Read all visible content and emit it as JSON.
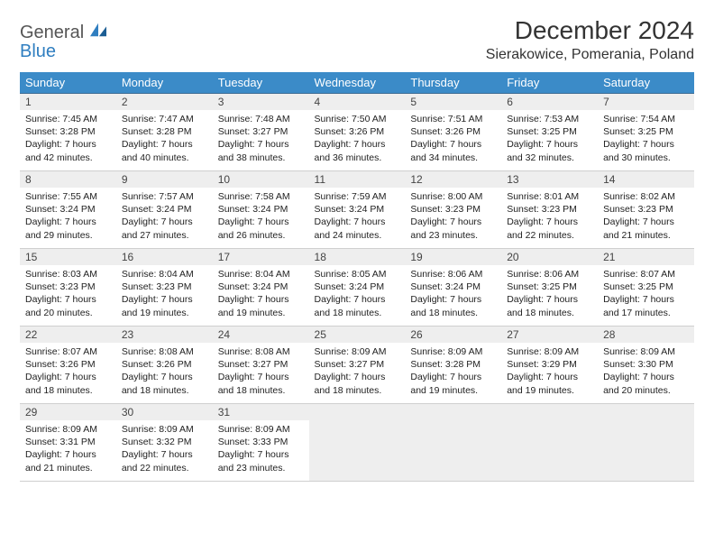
{
  "logo": {
    "word1": "General",
    "word2": "Blue"
  },
  "title": "December 2024",
  "location": "Sierakowice, Pomerania, Poland",
  "colors": {
    "header_bg": "#3b8bc8",
    "header_text": "#ffffff",
    "rule": "#3b6a93",
    "daynum_bg": "#eeeeee",
    "logo_blue": "#2f7ec0"
  },
  "weekdays": [
    "Sunday",
    "Monday",
    "Tuesday",
    "Wednesday",
    "Thursday",
    "Friday",
    "Saturday"
  ],
  "days": [
    {
      "n": 1,
      "sunrise": "7:45 AM",
      "sunset": "3:28 PM",
      "daylight": "7 hours and 42 minutes."
    },
    {
      "n": 2,
      "sunrise": "7:47 AM",
      "sunset": "3:28 PM",
      "daylight": "7 hours and 40 minutes."
    },
    {
      "n": 3,
      "sunrise": "7:48 AM",
      "sunset": "3:27 PM",
      "daylight": "7 hours and 38 minutes."
    },
    {
      "n": 4,
      "sunrise": "7:50 AM",
      "sunset": "3:26 PM",
      "daylight": "7 hours and 36 minutes."
    },
    {
      "n": 5,
      "sunrise": "7:51 AM",
      "sunset": "3:26 PM",
      "daylight": "7 hours and 34 minutes."
    },
    {
      "n": 6,
      "sunrise": "7:53 AM",
      "sunset": "3:25 PM",
      "daylight": "7 hours and 32 minutes."
    },
    {
      "n": 7,
      "sunrise": "7:54 AM",
      "sunset": "3:25 PM",
      "daylight": "7 hours and 30 minutes."
    },
    {
      "n": 8,
      "sunrise": "7:55 AM",
      "sunset": "3:24 PM",
      "daylight": "7 hours and 29 minutes."
    },
    {
      "n": 9,
      "sunrise": "7:57 AM",
      "sunset": "3:24 PM",
      "daylight": "7 hours and 27 minutes."
    },
    {
      "n": 10,
      "sunrise": "7:58 AM",
      "sunset": "3:24 PM",
      "daylight": "7 hours and 26 minutes."
    },
    {
      "n": 11,
      "sunrise": "7:59 AM",
      "sunset": "3:24 PM",
      "daylight": "7 hours and 24 minutes."
    },
    {
      "n": 12,
      "sunrise": "8:00 AM",
      "sunset": "3:23 PM",
      "daylight": "7 hours and 23 minutes."
    },
    {
      "n": 13,
      "sunrise": "8:01 AM",
      "sunset": "3:23 PM",
      "daylight": "7 hours and 22 minutes."
    },
    {
      "n": 14,
      "sunrise": "8:02 AM",
      "sunset": "3:23 PM",
      "daylight": "7 hours and 21 minutes."
    },
    {
      "n": 15,
      "sunrise": "8:03 AM",
      "sunset": "3:23 PM",
      "daylight": "7 hours and 20 minutes."
    },
    {
      "n": 16,
      "sunrise": "8:04 AM",
      "sunset": "3:23 PM",
      "daylight": "7 hours and 19 minutes."
    },
    {
      "n": 17,
      "sunrise": "8:04 AM",
      "sunset": "3:24 PM",
      "daylight": "7 hours and 19 minutes."
    },
    {
      "n": 18,
      "sunrise": "8:05 AM",
      "sunset": "3:24 PM",
      "daylight": "7 hours and 18 minutes."
    },
    {
      "n": 19,
      "sunrise": "8:06 AM",
      "sunset": "3:24 PM",
      "daylight": "7 hours and 18 minutes."
    },
    {
      "n": 20,
      "sunrise": "8:06 AM",
      "sunset": "3:25 PM",
      "daylight": "7 hours and 18 minutes."
    },
    {
      "n": 21,
      "sunrise": "8:07 AM",
      "sunset": "3:25 PM",
      "daylight": "7 hours and 17 minutes."
    },
    {
      "n": 22,
      "sunrise": "8:07 AM",
      "sunset": "3:26 PM",
      "daylight": "7 hours and 18 minutes."
    },
    {
      "n": 23,
      "sunrise": "8:08 AM",
      "sunset": "3:26 PM",
      "daylight": "7 hours and 18 minutes."
    },
    {
      "n": 24,
      "sunrise": "8:08 AM",
      "sunset": "3:27 PM",
      "daylight": "7 hours and 18 minutes."
    },
    {
      "n": 25,
      "sunrise": "8:09 AM",
      "sunset": "3:27 PM",
      "daylight": "7 hours and 18 minutes."
    },
    {
      "n": 26,
      "sunrise": "8:09 AM",
      "sunset": "3:28 PM",
      "daylight": "7 hours and 19 minutes."
    },
    {
      "n": 27,
      "sunrise": "8:09 AM",
      "sunset": "3:29 PM",
      "daylight": "7 hours and 19 minutes."
    },
    {
      "n": 28,
      "sunrise": "8:09 AM",
      "sunset": "3:30 PM",
      "daylight": "7 hours and 20 minutes."
    },
    {
      "n": 29,
      "sunrise": "8:09 AM",
      "sunset": "3:31 PM",
      "daylight": "7 hours and 21 minutes."
    },
    {
      "n": 30,
      "sunrise": "8:09 AM",
      "sunset": "3:32 PM",
      "daylight": "7 hours and 22 minutes."
    },
    {
      "n": 31,
      "sunrise": "8:09 AM",
      "sunset": "3:33 PM",
      "daylight": "7 hours and 23 minutes."
    }
  ],
  "labels": {
    "sunrise": "Sunrise:",
    "sunset": "Sunset:",
    "daylight": "Daylight:"
  }
}
